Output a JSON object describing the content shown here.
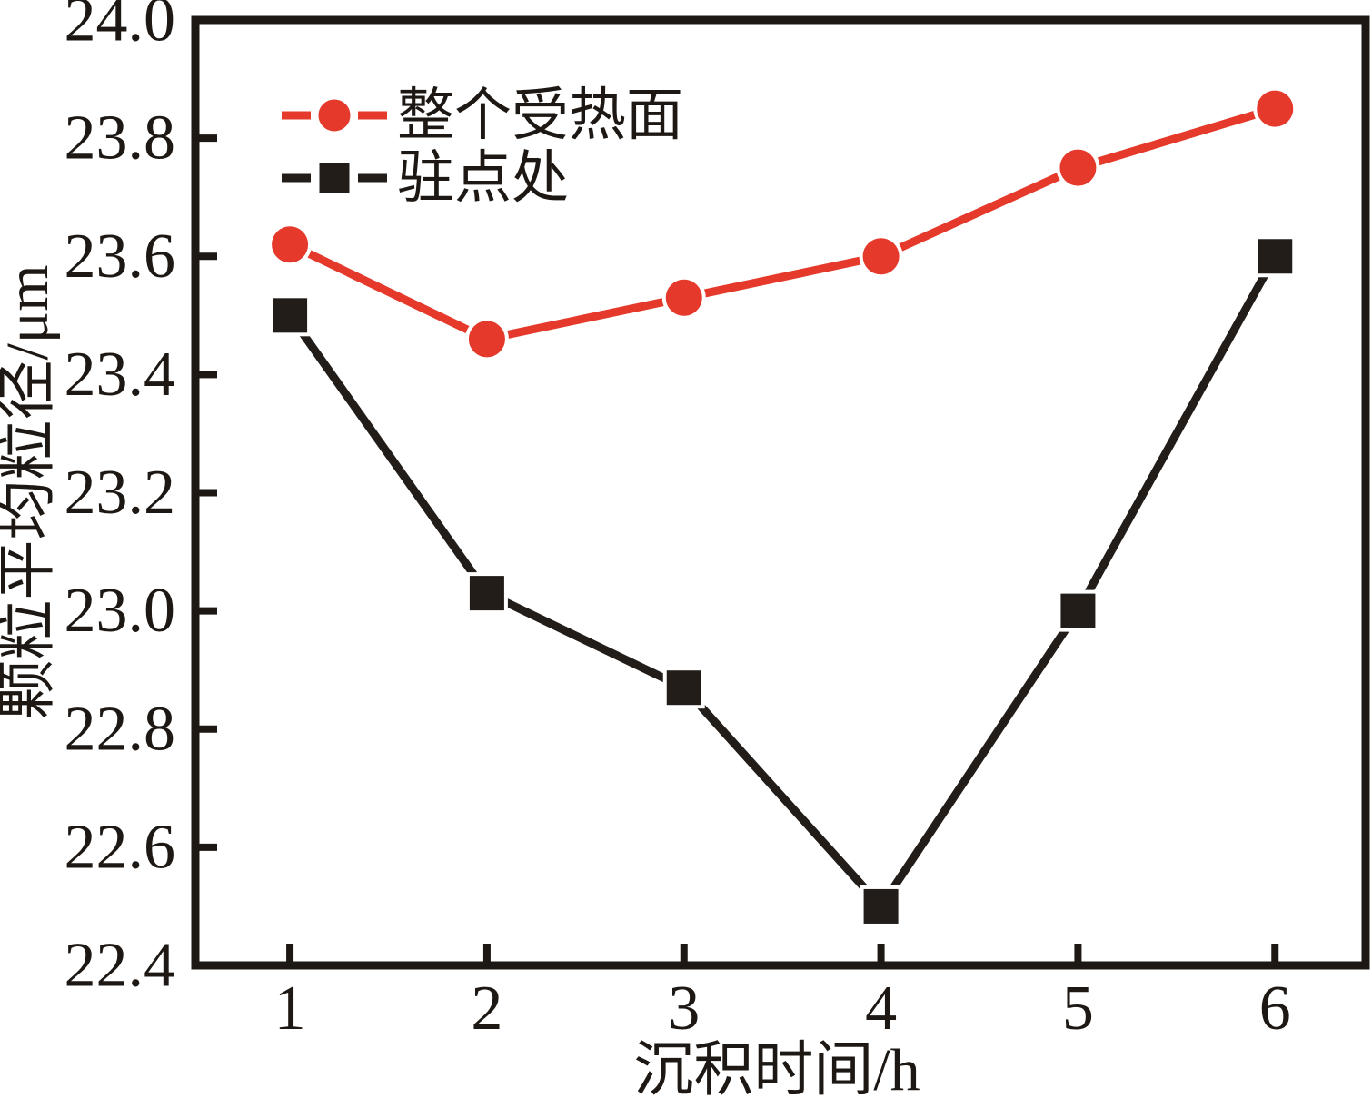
{
  "chart_data": {
    "type": "line",
    "title": "",
    "xlabel": "沉积时间/h",
    "ylabel": "颗粒平均粒径/μm",
    "x": [
      1,
      2,
      3,
      4,
      5,
      6
    ],
    "x_tick_labels": [
      "1",
      "2",
      "3",
      "4",
      "5",
      "6"
    ],
    "y_tick_labels": [
      "22.4",
      "22.6",
      "22.8",
      "23.0",
      "23.2",
      "23.4",
      "23.6",
      "23.8",
      "24.0"
    ],
    "xlim": [
      0.52,
      6.46
    ],
    "ylim": [
      22.4,
      24.0
    ],
    "y_tick_step": 0.2,
    "grid": false,
    "legend_position": "top-left-inside",
    "background_color": "#ffffff",
    "axis_color": "#1d1813",
    "series": [
      {
        "name": "整个受热面",
        "marker": "circle",
        "line_style": "solid",
        "color": "#e5392b",
        "values": [
          23.62,
          23.46,
          23.53,
          23.6,
          23.75,
          23.85
        ]
      },
      {
        "name": "驻点处",
        "marker": "square",
        "line_style": "solid",
        "color": "#221d19",
        "values": [
          23.5,
          23.03,
          22.87,
          22.5,
          23.0,
          23.6
        ]
      }
    ]
  }
}
